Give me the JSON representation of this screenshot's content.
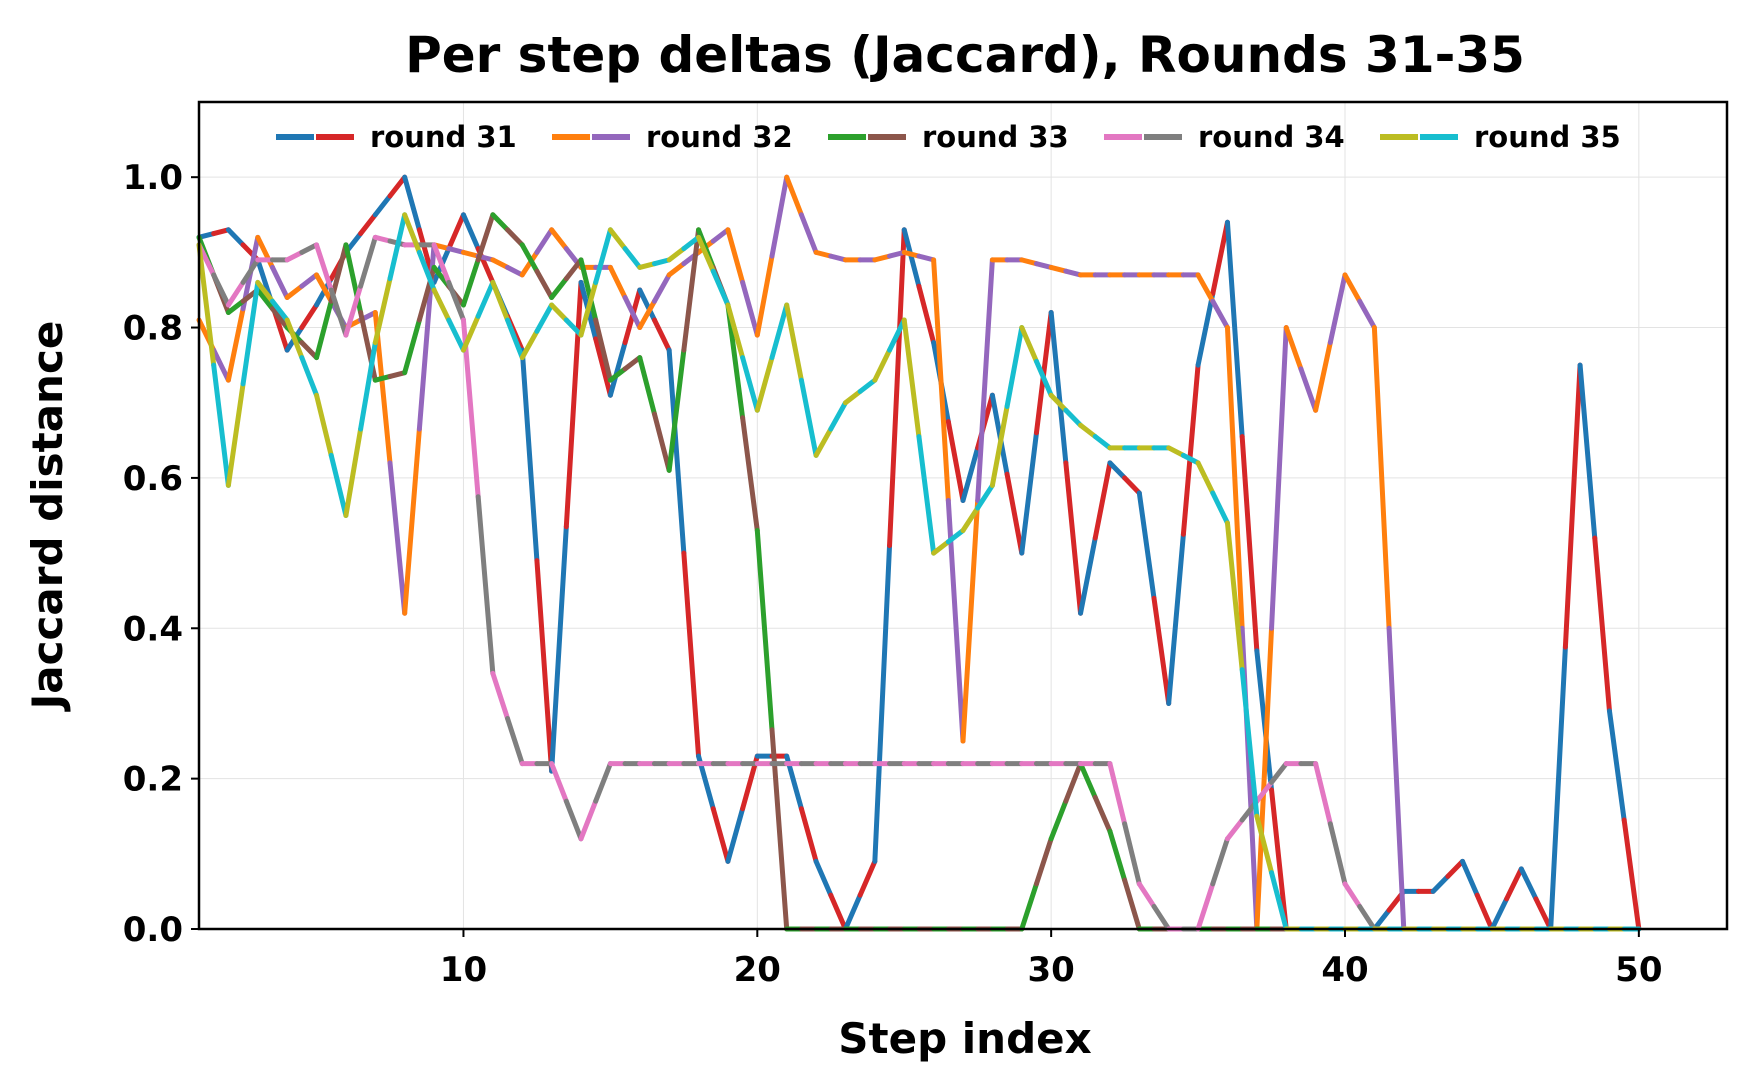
{
  "chart_data": {
    "type": "line",
    "title": "Per step deltas (Jaccard), Rounds 31-35",
    "xlabel": "Step index",
    "ylabel": "Jaccard distance",
    "xlim": [
      1,
      53
    ],
    "ylim": [
      0,
      1.1
    ],
    "xticks": [
      10,
      20,
      30,
      40,
      50
    ],
    "yticks": [
      0.0,
      0.2,
      0.4,
      0.6,
      0.8,
      1.0
    ],
    "xtick_labels": [
      "10",
      "20",
      "30",
      "40",
      "50"
    ],
    "ytick_labels": [
      "0.0",
      "0.2",
      "0.4",
      "0.6",
      "0.8",
      "1.0"
    ],
    "grid": true,
    "legend_position": "top",
    "legend": [
      "round 31",
      "round 32",
      "round 33",
      "round 34",
      "round 35"
    ],
    "series": [
      {
        "name": "round 31",
        "colors": [
          "#1f77b4",
          "#d62728"
        ],
        "x": [
          1,
          2,
          3,
          4,
          5,
          6,
          7,
          8,
          9,
          10,
          11,
          12,
          13,
          14,
          15,
          16,
          17,
          18,
          19,
          20,
          21,
          22,
          23,
          24,
          25,
          26,
          27,
          28,
          29,
          30,
          31,
          32,
          33,
          34,
          35,
          36,
          37,
          38,
          39,
          40,
          41,
          42,
          43,
          44,
          45,
          46,
          47,
          48,
          49,
          50
        ],
        "values": [
          0.92,
          0.93,
          0.89,
          0.77,
          0.83,
          0.9,
          0.95,
          1.0,
          0.86,
          0.95,
          0.86,
          0.77,
          0.21,
          0.86,
          0.71,
          0.85,
          0.77,
          0.23,
          0.09,
          0.23,
          0.23,
          0.09,
          0.0,
          0.09,
          0.93,
          0.78,
          0.57,
          0.71,
          0.5,
          0.82,
          0.42,
          0.62,
          0.58,
          0.3,
          0.75,
          0.94,
          0.37,
          0.0,
          0.0,
          0.0,
          0.0,
          0.05,
          0.05,
          0.09,
          0.0,
          0.08,
          0.0,
          0.75,
          0.29,
          0.0
        ]
      },
      {
        "name": "round 32",
        "colors": [
          "#ff7f0e",
          "#9467bd"
        ],
        "x": [
          1,
          2,
          3,
          4,
          5,
          6,
          7,
          8,
          9,
          10,
          11,
          12,
          13,
          14,
          15,
          16,
          17,
          18,
          19,
          20,
          21,
          22,
          23,
          24,
          25,
          26,
          27,
          28,
          29,
          30,
          31,
          32,
          33,
          34,
          35,
          36,
          37,
          38,
          39,
          40,
          41,
          42,
          43,
          44,
          45,
          46,
          47,
          48,
          49,
          50
        ],
        "values": [
          0.81,
          0.73,
          0.92,
          0.84,
          0.87,
          0.8,
          0.82,
          0.42,
          0.91,
          0.9,
          0.89,
          0.87,
          0.93,
          0.88,
          0.88,
          0.8,
          0.87,
          0.9,
          0.93,
          0.79,
          1.0,
          0.9,
          0.89,
          0.89,
          0.9,
          0.89,
          0.25,
          0.89,
          0.89,
          0.88,
          0.87,
          0.87,
          0.87,
          0.87,
          0.87,
          0.8,
          0.0,
          0.8,
          0.69,
          0.87,
          0.8,
          0.0,
          0.0,
          0.0,
          0.0,
          0.0,
          0.0,
          0.0,
          0.0,
          0.0
        ]
      },
      {
        "name": "round 33",
        "colors": [
          "#2ca02c",
          "#8c564b"
        ],
        "x": [
          1,
          2,
          3,
          4,
          5,
          6,
          7,
          8,
          9,
          10,
          11,
          12,
          13,
          14,
          15,
          16,
          17,
          18,
          19,
          20,
          21,
          22,
          23,
          24,
          25,
          26,
          27,
          28,
          29,
          30,
          31,
          32,
          33,
          34,
          35,
          36,
          37,
          38,
          39,
          40,
          41,
          42,
          43,
          44,
          45,
          46,
          47,
          48,
          49,
          50
        ],
        "values": [
          0.92,
          0.82,
          0.85,
          0.8,
          0.76,
          0.91,
          0.73,
          0.74,
          0.88,
          0.83,
          0.95,
          0.91,
          0.84,
          0.89,
          0.73,
          0.76,
          0.61,
          0.93,
          0.83,
          0.53,
          0.0,
          0.0,
          0.0,
          0.0,
          0.0,
          0.0,
          0.0,
          0.0,
          0.0,
          0.12,
          0.22,
          0.13,
          0.0,
          0.0,
          0.0,
          0.0,
          0.0,
          0.0,
          0.0,
          0.0,
          0.0,
          0.0,
          0.0,
          0.0,
          0.0,
          0.0,
          0.0,
          0.0,
          0.0,
          0.0
        ]
      },
      {
        "name": "round 34",
        "colors": [
          "#e377c2",
          "#7f7f7f"
        ],
        "x": [
          1,
          2,
          3,
          4,
          5,
          6,
          7,
          8,
          9,
          10,
          11,
          12,
          13,
          14,
          15,
          16,
          17,
          18,
          19,
          20,
          21,
          22,
          23,
          24,
          25,
          26,
          27,
          28,
          29,
          30,
          31,
          32,
          33,
          34,
          35,
          36,
          37,
          38,
          39,
          40,
          41,
          42,
          43,
          44,
          45,
          46,
          47,
          48,
          49,
          50
        ],
        "values": [
          0.91,
          0.83,
          0.89,
          0.89,
          0.91,
          0.79,
          0.92,
          0.91,
          0.91,
          0.81,
          0.34,
          0.22,
          0.22,
          0.12,
          0.22,
          0.22,
          0.22,
          0.22,
          0.22,
          0.22,
          0.22,
          0.22,
          0.22,
          0.22,
          0.22,
          0.22,
          0.22,
          0.22,
          0.22,
          0.22,
          0.22,
          0.22,
          0.06,
          0.0,
          0.0,
          0.12,
          0.17,
          0.22,
          0.22,
          0.06,
          0.0,
          0.0,
          0.0,
          0.0,
          0.0,
          0.0,
          0.0,
          0.0,
          0.0,
          0.0
        ]
      },
      {
        "name": "round 35",
        "colors": [
          "#bcbd22",
          "#17becf"
        ],
        "x": [
          1,
          2,
          3,
          4,
          5,
          6,
          7,
          8,
          9,
          10,
          11,
          12,
          13,
          14,
          15,
          16,
          17,
          18,
          19,
          20,
          21,
          22,
          23,
          24,
          25,
          26,
          27,
          28,
          29,
          30,
          31,
          32,
          33,
          34,
          35,
          36,
          37,
          38,
          39,
          40,
          41,
          42,
          43,
          44,
          45,
          46,
          47,
          48,
          49,
          50
        ],
        "values": [
          0.91,
          0.59,
          0.86,
          0.81,
          0.71,
          0.55,
          0.78,
          0.95,
          0.85,
          0.77,
          0.86,
          0.76,
          0.83,
          0.79,
          0.93,
          0.88,
          0.89,
          0.92,
          0.83,
          0.69,
          0.83,
          0.63,
          0.7,
          0.73,
          0.81,
          0.5,
          0.53,
          0.59,
          0.8,
          0.71,
          0.67,
          0.64,
          0.64,
          0.64,
          0.62,
          0.54,
          0.15,
          0.0,
          0.0,
          0.0,
          0.0,
          0.0,
          0.0,
          0.0,
          0.0,
          0.0,
          0.0,
          0.0,
          0.0,
          0.0
        ]
      }
    ]
  }
}
